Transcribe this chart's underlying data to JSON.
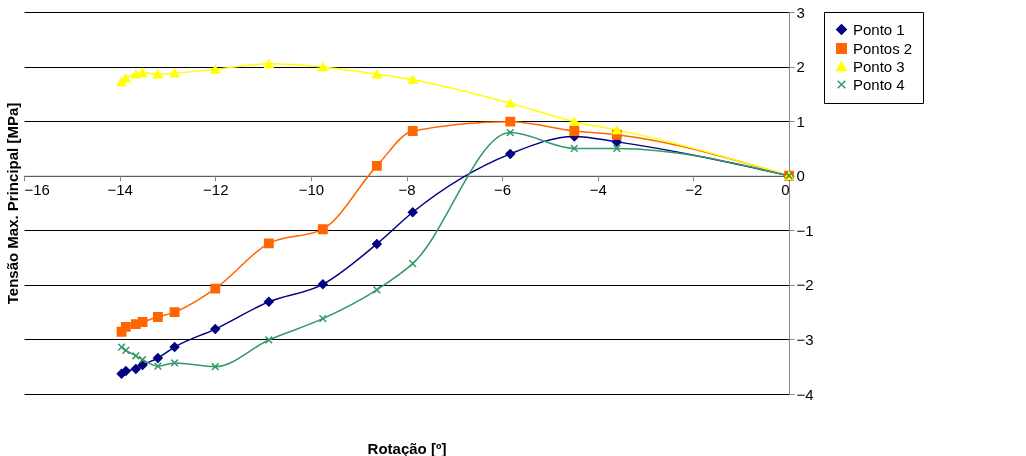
{
  "chart_data": {
    "type": "line",
    "xlabel": "Rotação [º]",
    "ylabel": "Tensão Max. Principal [MPa]",
    "xlim": [
      -16,
      0
    ],
    "xticks": [
      -16,
      -14,
      -12,
      -10,
      -8,
      -6,
      -4,
      -2,
      0
    ],
    "ylim": [
      -4,
      3
    ],
    "yticks": [
      -4,
      -3,
      -2,
      -1,
      0,
      1,
      2,
      3
    ],
    "grid": "y",
    "legend": "right",
    "line_style": "solid",
    "x": [
      -13.96,
      -13.87,
      -13.66,
      -13.52,
      -13.2,
      -12.85,
      -12.0,
      -10.88,
      -9.75,
      -8.62,
      -7.87,
      -5.83,
      -4.49,
      -3.6,
      0
    ],
    "series": [
      {
        "name": "Ponto 1",
        "color": "#000080",
        "marker": "diamond",
        "values": [
          -3.63,
          -3.58,
          -3.54,
          -3.47,
          -3.34,
          -3.14,
          -2.81,
          -2.31,
          -1.99,
          -1.25,
          -0.67,
          0.4,
          0.72,
          0.62,
          0
        ]
      },
      {
        "name": "Pontos 2",
        "color": "#ff6600",
        "marker": "square",
        "values": [
          -2.86,
          -2.77,
          -2.72,
          -2.68,
          -2.59,
          -2.5,
          -2.07,
          -1.24,
          -0.98,
          0.18,
          0.82,
          0.99,
          0.82,
          0.75,
          0
        ]
      },
      {
        "name": "Ponto 3",
        "color": "#ffff00",
        "marker": "triangle",
        "values": [
          1.72,
          1.79,
          1.86,
          1.89,
          1.86,
          1.88,
          1.95,
          2.05,
          1.99,
          1.86,
          1.76,
          1.33,
          0.99,
          0.84,
          0
        ]
      },
      {
        "name": "Ponto 4",
        "color": "#339966",
        "marker": "cross",
        "values": [
          -3.14,
          -3.2,
          -3.3,
          -3.37,
          -3.49,
          -3.43,
          -3.5,
          -3.01,
          -2.62,
          -2.09,
          -1.61,
          0.79,
          0.5,
          0.5,
          0
        ]
      }
    ]
  }
}
